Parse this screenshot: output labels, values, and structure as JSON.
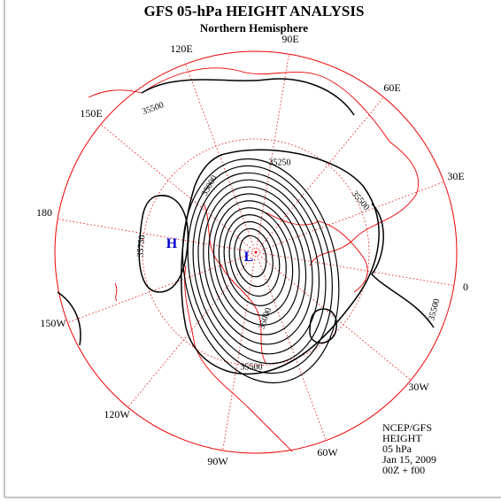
{
  "header": {
    "title": "GFS 05-hPa HEIGHT ANALYSIS",
    "subtitle": "Northern Hemisphere"
  },
  "longitude_labels": [
    "90E",
    "120E",
    "60E",
    "150E",
    "30E",
    "180",
    "0",
    "150W",
    "30W",
    "120W",
    "90W",
    "60W"
  ],
  "contour_labels": [
    "35500",
    "35250",
    "35000",
    "35500",
    "35750",
    "35500",
    "35500",
    "35000"
  ],
  "centers": [
    "H",
    "L"
  ],
  "info": [
    "NCEP/GFS",
    "HEIGHT",
    "05 hPa",
    "Jan 15, 2009",
    "00Z + f00"
  ]
}
